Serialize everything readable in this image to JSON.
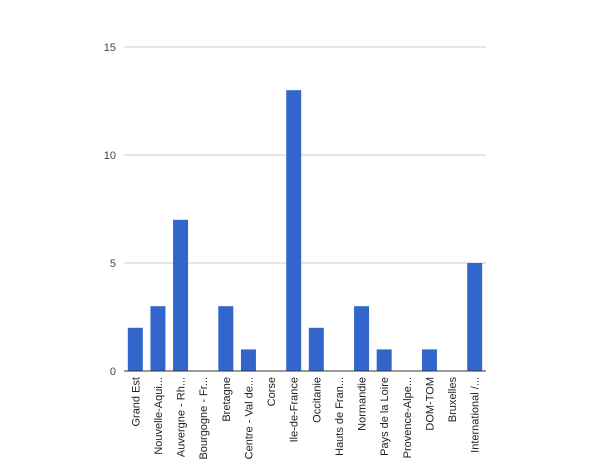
{
  "chart_data": {
    "type": "bar",
    "title": "",
    "xlabel": "",
    "ylabel": "",
    "categories": [
      "Grand Est",
      "Nouvelle-Aqui...",
      "Auvergne - Rh...",
      "Bourgogne - Fr...",
      "Bretagne",
      "Centre - Val de...",
      "Corse",
      "Ile-de-France",
      "Occitanie",
      "Hauts de Fran...",
      "Normandie",
      "Pays de la Loire",
      "Provence-Alpe...",
      "DOM-TOM",
      "Bruxelles",
      "International /..."
    ],
    "values": [
      2,
      3,
      7,
      0,
      3,
      1,
      0,
      13,
      2,
      0,
      3,
      1,
      0,
      1,
      0,
      5
    ],
    "ylim": [
      0,
      15
    ],
    "yticks": [
      0,
      5,
      10,
      15
    ],
    "grid": true,
    "legend": "none",
    "colors": {
      "bar": "#3366cc",
      "grid": "#cccccc",
      "baseline": "#333333",
      "tick_label": "#444444",
      "category_label": "#222222"
    }
  }
}
